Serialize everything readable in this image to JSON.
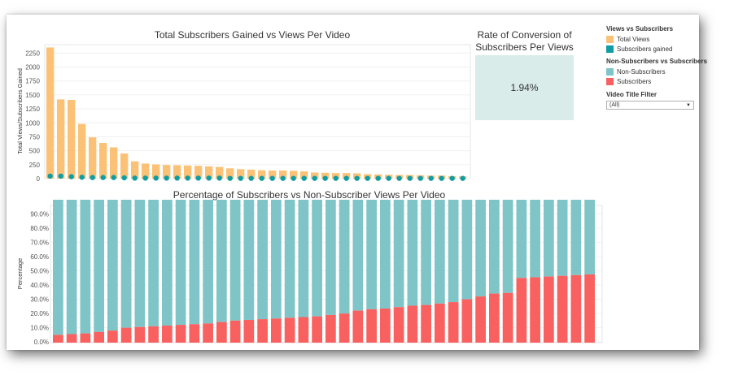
{
  "chart_data": [
    {
      "type": "bar",
      "title": "Total Subscribers Gained vs Views Per Video",
      "xlabel": "",
      "ylabel": "Total Views/Subscribers Gained",
      "ylim": [
        0,
        2400
      ],
      "yticks": [
        0,
        250,
        500,
        750,
        1000,
        1250,
        1500,
        1750,
        2000,
        2250
      ],
      "series": [
        {
          "name": "Total Views",
          "mark": "bar",
          "color": "#fbc277",
          "values": [
            2350,
            1420,
            1410,
            980,
            740,
            640,
            560,
            450,
            310,
            270,
            255,
            245,
            240,
            235,
            230,
            220,
            210,
            185,
            170,
            160,
            150,
            145,
            145,
            140,
            130,
            110,
            105,
            100,
            100,
            95,
            80,
            75,
            70,
            65,
            65,
            60,
            55,
            55,
            45,
            40
          ]
        },
        {
          "name": "Subscribers gained",
          "mark": "circle",
          "color": "#0f9da3",
          "values": [
            45,
            45,
            35,
            25,
            20,
            20,
            20,
            15,
            10,
            10,
            10,
            10,
            10,
            10,
            10,
            10,
            10,
            5,
            5,
            5,
            5,
            5,
            5,
            5,
            5,
            5,
            5,
            5,
            5,
            5,
            5,
            5,
            5,
            5,
            5,
            5,
            5,
            5,
            5,
            5
          ]
        }
      ],
      "grid": true
    },
    {
      "type": "bar",
      "title": "Percentage of Subscribers vs Non-Subscriber Views Per Video",
      "xlabel": "",
      "ylabel": "Percentage",
      "ylim": [
        -0.5,
        96
      ],
      "yticks": [
        0,
        10,
        20,
        30,
        40,
        50,
        60,
        70,
        80,
        90
      ],
      "ytick_labels": [
        "0.0%",
        "10.0%",
        "20.0%",
        "30.0%",
        "40.0%",
        "50.0%",
        "60.0%",
        "70.0%",
        "80.0%",
        "90.0%"
      ],
      "stacked": true,
      "series": [
        {
          "name": "Subscribers",
          "color": "#f8615f",
          "values": [
            5.0,
            5.5,
            6.0,
            7.0,
            8.0,
            10.0,
            10.5,
            11.0,
            11.5,
            12.0,
            12.5,
            13.0,
            14.0,
            15.0,
            15.5,
            16.0,
            16.5,
            17.0,
            17.5,
            18.0,
            19.0,
            20.0,
            22.0,
            23.0,
            23.5,
            24.5,
            25.5,
            26.0,
            27.0,
            28.0,
            30.0,
            32.0,
            34.0,
            34.5,
            45.0,
            45.5,
            46.0,
            46.5,
            47.0,
            47.5
          ]
        },
        {
          "name": "Non-Subscribers",
          "color": "#7fc5c8",
          "values": [
            95.0,
            94.5,
            94.0,
            93.0,
            92.0,
            90.0,
            89.5,
            89.0,
            88.5,
            88.0,
            87.5,
            87.0,
            86.0,
            85.0,
            84.5,
            84.0,
            83.5,
            83.0,
            82.5,
            82.0,
            81.0,
            80.0,
            78.0,
            77.0,
            76.5,
            75.5,
            74.5,
            74.0,
            73.0,
            72.0,
            70.0,
            68.0,
            66.0,
            65.5,
            55.0,
            54.5,
            54.0,
            53.5,
            53.0,
            52.5
          ]
        }
      ],
      "grid": true
    }
  ],
  "kpi": {
    "title_line1": "Rate of Conversion of",
    "title_line2": "Subscribers Per Views",
    "value": "1.94%"
  },
  "legend_views": {
    "title": "Views vs Subscribers",
    "items": [
      {
        "label": "Total Views",
        "color": "#fbc277"
      },
      {
        "label": "Subscribers gained",
        "color": "#0f9da3"
      }
    ]
  },
  "legend_subs": {
    "title": "Non-Subscribers vs Subscribers",
    "items": [
      {
        "label": "Non-Subscribers",
        "color": "#7fc5c8"
      },
      {
        "label": "Subscribers",
        "color": "#f8615f"
      }
    ]
  },
  "filter": {
    "title": "Video Title Filter",
    "value": "(All)",
    "icon": "chevron-down-icon"
  }
}
